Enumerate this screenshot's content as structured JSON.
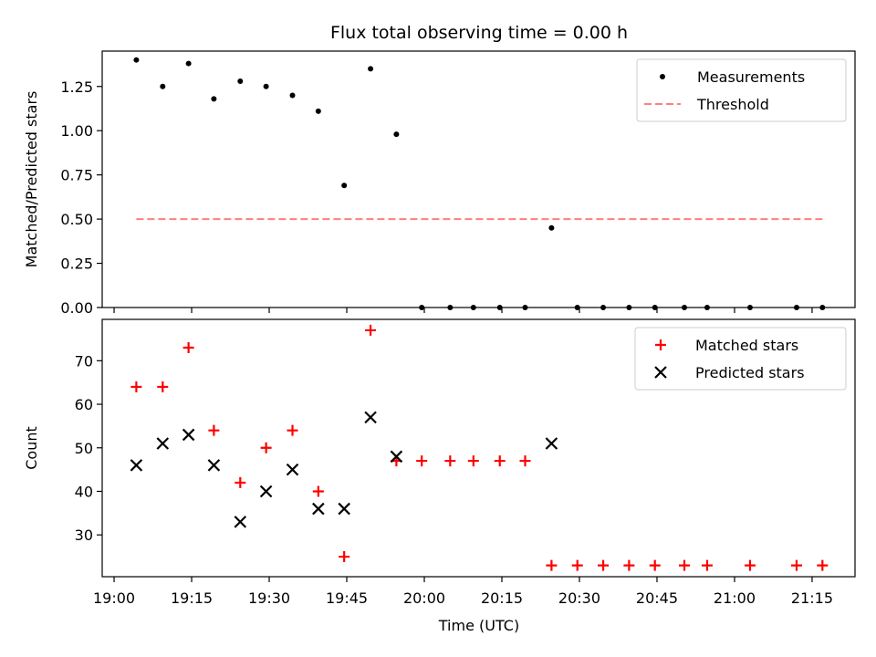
{
  "title": "Flux total observing time = 0.00 h",
  "x_axis": {
    "label": "Time (UTC)",
    "tick_labels": [
      "19:00",
      "19:15",
      "19:30",
      "19:45",
      "20:00",
      "20:15",
      "20:30",
      "20:45",
      "21:00",
      "21:15"
    ],
    "tick_minutes": [
      0,
      15,
      30,
      45,
      60,
      75,
      90,
      105,
      120,
      135
    ],
    "minor_tick_minutes": [
      0,
      15,
      30,
      45,
      60,
      75,
      90,
      105,
      120,
      135
    ],
    "range_minutes": [
      -2.3,
      143.3
    ]
  },
  "colors": {
    "measurement": "#000000",
    "threshold": "#ff7f7f",
    "matched": "#ff0000",
    "predicted": "#000000"
  },
  "chart_data": [
    {
      "type": "scatter",
      "ylabel": "Matched/Predicted stars",
      "ylim": [
        0,
        1.45
      ],
      "y_ticks": [
        0.0,
        0.25,
        0.5,
        0.75,
        1.0,
        1.25
      ],
      "y_tick_labels": [
        "0.00",
        "0.25",
        "0.50",
        "0.75",
        "1.00",
        "1.25"
      ],
      "legend_position": "top-right",
      "series": [
        {
          "name": "Measurements",
          "marker": "dot",
          "x_minutes": [
            4.3,
            9.4,
            14.4,
            19.3,
            24.4,
            29.4,
            34.5,
            39.5,
            44.5,
            49.6,
            54.6,
            59.5,
            65.0,
            69.5,
            74.6,
            79.5,
            84.6,
            89.6,
            94.6,
            99.6,
            104.6,
            110.3,
            114.7,
            123.0,
            132.0,
            137.0
          ],
          "y": [
            1.4,
            1.25,
            1.38,
            1.18,
            1.28,
            1.25,
            1.2,
            1.11,
            0.69,
            1.35,
            0.98,
            0.0,
            0.0,
            0.0,
            0.0,
            0.0,
            0.45,
            0.0,
            0.0,
            0.0,
            0.0,
            0.0,
            0.0,
            0.0,
            0.0,
            0.0
          ]
        },
        {
          "name": "Threshold",
          "marker": "dashed-line",
          "x_minutes": [
            4.3,
            137.0
          ],
          "y": [
            0.5,
            0.5
          ]
        }
      ]
    },
    {
      "type": "scatter",
      "ylabel": "Count",
      "ylim": [
        20.4,
        79.5
      ],
      "y_ticks": [
        30,
        40,
        50,
        60,
        70
      ],
      "y_tick_labels": [
        "30",
        "40",
        "50",
        "60",
        "70"
      ],
      "legend_position": "top-right",
      "series": [
        {
          "name": "Matched stars",
          "marker": "plus",
          "x_minutes": [
            4.3,
            9.4,
            14.4,
            19.3,
            24.4,
            29.4,
            34.5,
            39.5,
            44.5,
            49.6,
            54.6,
            59.5,
            65.0,
            69.5,
            74.6,
            79.5,
            84.6,
            89.6,
            94.6,
            99.6,
            104.6,
            110.3,
            114.7,
            123.0,
            132.0,
            137.0
          ],
          "y": [
            64,
            64,
            73,
            54,
            42,
            50,
            54,
            40,
            25,
            77,
            47,
            47,
            47,
            47,
            47,
            47,
            23,
            23,
            23,
            23,
            23,
            23,
            23,
            23,
            23,
            23
          ]
        },
        {
          "name": "Predicted stars",
          "marker": "x",
          "x_minutes": [
            4.3,
            9.4,
            14.4,
            19.3,
            24.4,
            29.4,
            34.5,
            39.5,
            44.5,
            49.6,
            54.6,
            84.6
          ],
          "y": [
            46,
            51,
            53,
            46,
            33,
            40,
            45,
            36,
            36,
            57,
            48,
            51
          ]
        }
      ]
    }
  ]
}
